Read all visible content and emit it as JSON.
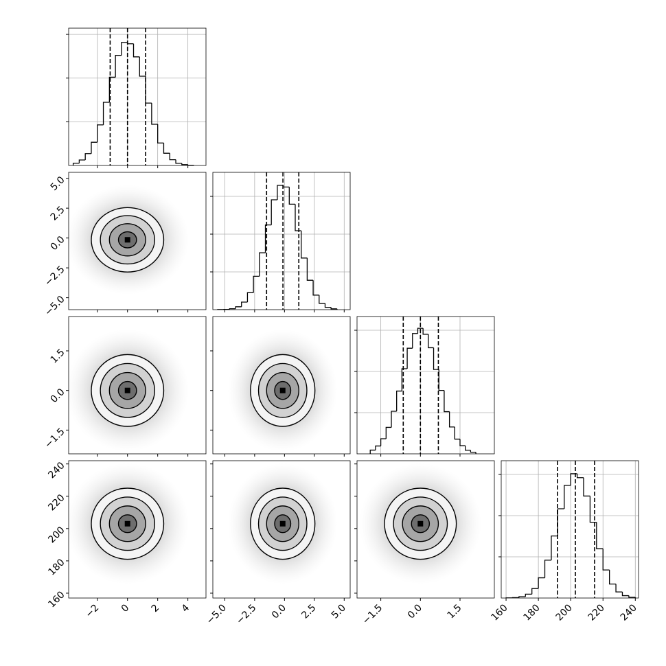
{
  "chart_data": {
    "type": "corner",
    "grid": true,
    "contour_levels": [
      0.5,
      1,
      1.5,
      2
    ],
    "variables": [
      {
        "range": [
          -3.9,
          5.2
        ],
        "ticks": [
          {
            "value": -2,
            "label": "−2"
          },
          0,
          2,
          4
        ],
        "quantiles": [
          -1.15,
          0.0,
          1.2
        ],
        "mean": 0.0,
        "std": 1.2,
        "bins": [
          -3.6,
          -3.2,
          -2.8,
          -2.4,
          -2.0,
          -1.6,
          -1.2,
          -0.8,
          -0.4,
          0.0,
          0.4,
          0.8,
          1.2,
          1.6,
          2.0,
          2.4,
          2.8,
          3.2,
          3.6,
          4.0,
          4.4
        ],
        "counts": [
          18,
          44,
          95,
          186,
          325,
          506,
          707,
          882,
          986,
          975,
          870,
          715,
          500,
          330,
          180,
          98,
          46,
          17,
          7,
          2
        ],
        "hist_ylim": [
          0,
          1100
        ],
        "hist_yticks": [
          350,
          700,
          1050
        ]
      },
      {
        "range": [
          -6.0,
          5.5
        ],
        "ticks": [
          {
            "value": -5,
            "label": "−5.0"
          },
          {
            "value": -2.5,
            "label": "−2.5"
          },
          {
            "value": 0,
            "label": "0.0"
          },
          {
            "value": 2.5,
            "label": "2.5"
          },
          {
            "value": 5,
            "label": "5.0"
          }
        ],
        "quantiles": [
          -1.5,
          -0.13,
          1.2
        ],
        "mean": -0.15,
        "std": 1.35,
        "bins": [
          -5.6,
          -5.1,
          -4.6,
          -4.1,
          -3.6,
          -3.1,
          -2.6,
          -2.1,
          -1.6,
          -1.1,
          -0.6,
          -0.1,
          0.4,
          0.9,
          1.4,
          1.9,
          2.4,
          2.9,
          3.4,
          3.9,
          4.4
        ],
        "counts": [
          1,
          2,
          7,
          21,
          55,
          124,
          243,
          414,
          617,
          800,
          905,
          893,
          768,
          575,
          376,
          214,
          106,
          46,
          17,
          6
        ],
        "hist_ylim": [
          0,
          1000
        ],
        "hist_yticks": [
          275,
          550,
          825
        ]
      },
      {
        "range": [
          -2.4,
          2.8
        ],
        "ticks": [
          {
            "value": -1.5,
            "label": "−1.5"
          },
          {
            "value": 0,
            "label": "0.0"
          },
          {
            "value": 1.5,
            "label": "1.5"
          }
        ],
        "quantiles": [
          -0.65,
          0.0,
          0.68
        ],
        "mean": 0.0,
        "std": 0.68,
        "bins": [
          -1.9,
          -1.7,
          -1.5,
          -1.3,
          -1.1,
          -0.9,
          -0.7,
          -0.5,
          -0.3,
          -0.1,
          0.1,
          0.3,
          0.5,
          0.7,
          0.9,
          1.1,
          1.3,
          1.5,
          1.7,
          1.9,
          2.1
        ],
        "counts": [
          30,
          63,
          121,
          212,
          341,
          503,
          682,
          846,
          964,
          1006,
          958,
          850,
          676,
          508,
          338,
          215,
          118,
          65,
          29,
          13
        ],
        "hist_ylim": [
          0,
          1100
        ],
        "hist_yticks": [
          330,
          660,
          990
        ]
      },
      {
        "range": [
          157,
          242
        ],
        "ticks": [
          160,
          180,
          200,
          220,
          240
        ],
        "quantiles": [
          191.8,
          202.9,
          214.8
        ],
        "mean": 203,
        "std": 11,
        "bins": [
          160,
          164,
          168,
          172,
          176,
          180,
          184,
          188,
          192,
          196,
          200,
          204,
          208,
          212,
          216,
          220,
          224,
          228,
          232,
          236,
          240
        ],
        "counts": [
          1,
          3,
          11,
          31,
          76,
          162,
          303,
          497,
          715,
          902,
          996,
          964,
          817,
          607,
          395,
          225,
          112,
          49,
          19,
          6
        ],
        "hist_ylim": [
          0,
          1100
        ],
        "hist_yticks": [
          330,
          660,
          990
        ]
      }
    ]
  }
}
